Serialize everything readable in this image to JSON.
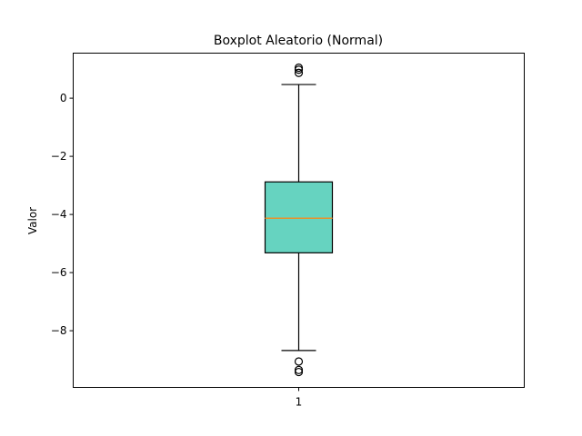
{
  "chart_data": {
    "type": "boxplot",
    "title": "Boxplot Aleatorio (Normal)",
    "xlabel": "",
    "ylabel": "Valor",
    "x_tick_labels": [
      "1"
    ],
    "y_ticks": [
      0,
      -2,
      -4,
      -6,
      -8
    ],
    "y_tick_labels": [
      "0",
      "−2",
      "−4",
      "−6",
      "−8"
    ],
    "ylim": [
      -9.95,
      1.55
    ],
    "grid": false,
    "boxes": [
      {
        "label": "1",
        "whisker_low": -8.68,
        "q1": -5.32,
        "median": -4.13,
        "q3": -2.88,
        "whisker_high": 0.47,
        "outliers": [
          1.05,
          0.98,
          0.87,
          -9.06,
          -9.35,
          -9.42
        ]
      }
    ],
    "colors": {
      "box_fill": "#66d3c0",
      "median_line": "#e8922c",
      "edge": "#000000"
    }
  }
}
